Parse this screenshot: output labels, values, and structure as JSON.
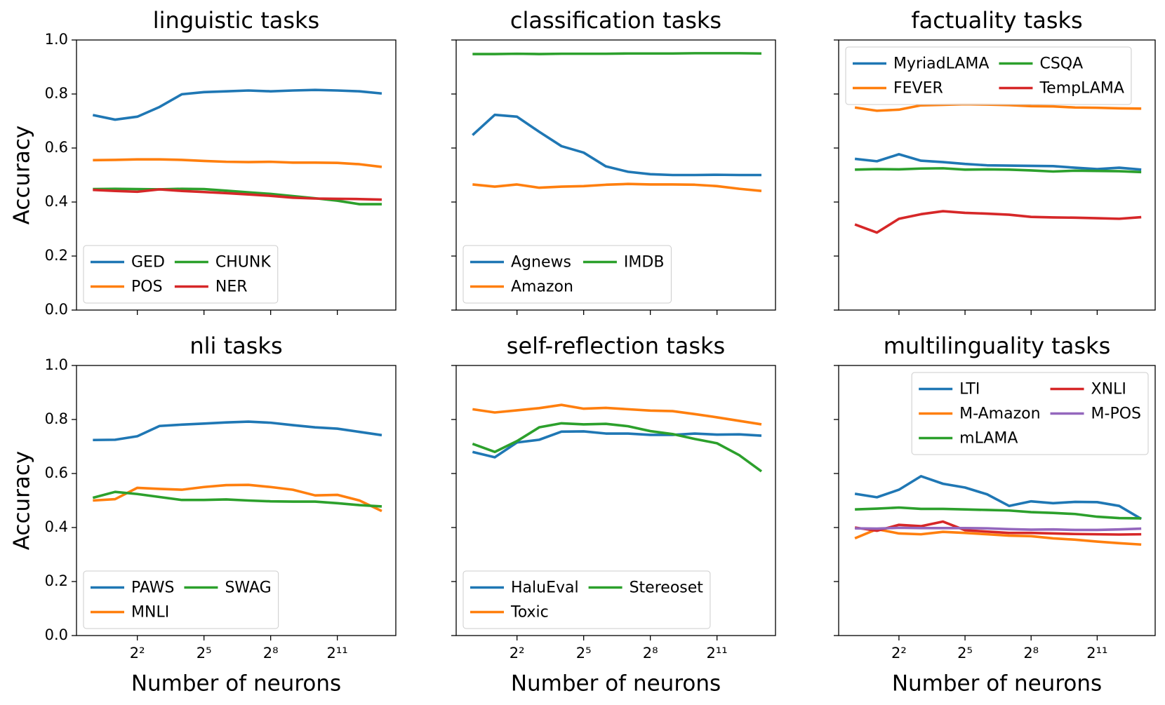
{
  "chart_data": [
    {
      "type": "line",
      "title": "linguistic tasks",
      "ylabel": "Accuracy",
      "x": [
        1,
        2,
        4,
        8,
        16,
        32,
        64,
        128,
        256,
        512,
        1024,
        2048,
        4096,
        8192
      ],
      "xscale": "log2",
      "xlim": [
        0.6,
        12700
      ],
      "ylim": [
        0,
        1
      ],
      "yticks": [
        {
          "value": 0,
          "label": "0.0"
        },
        0.2,
        0.4,
        0.6,
        0.8,
        {
          "value": 1,
          "label": "1.0"
        }
      ],
      "legend": "lower left",
      "legend_columns": 2,
      "series": [
        {
          "name": "GED",
          "color": "#1f77b4",
          "values": [
            0.722,
            0.705,
            0.716,
            0.752,
            0.799,
            0.807,
            0.81,
            0.813,
            0.81,
            0.813,
            0.815,
            0.813,
            0.81,
            0.802
          ]
        },
        {
          "name": "POS",
          "color": "#ff7f0e",
          "values": [
            0.555,
            0.556,
            0.558,
            0.558,
            0.556,
            0.552,
            0.549,
            0.548,
            0.549,
            0.546,
            0.546,
            0.545,
            0.54,
            0.53
          ]
        },
        {
          "name": "CHUNK",
          "color": "#2ca02c",
          "values": [
            0.448,
            0.449,
            0.448,
            0.447,
            0.449,
            0.448,
            0.442,
            0.436,
            0.43,
            0.422,
            0.414,
            0.405,
            0.392,
            0.392
          ]
        },
        {
          "name": "NER",
          "color": "#d62728",
          "values": [
            0.445,
            0.441,
            0.438,
            0.447,
            0.441,
            0.437,
            0.433,
            0.428,
            0.423,
            0.416,
            0.413,
            0.412,
            0.411,
            0.409
          ]
        }
      ]
    },
    {
      "type": "line",
      "title": "classification tasks",
      "x": [
        1,
        2,
        4,
        8,
        16,
        32,
        64,
        128,
        256,
        512,
        1024,
        2048,
        4096,
        8192
      ],
      "xscale": "log2",
      "xlim": [
        0.6,
        12700
      ],
      "ylim": [
        0,
        1
      ],
      "legend": "lower left",
      "legend_columns": 2,
      "series": [
        {
          "name": "Agnews",
          "color": "#1f77b4",
          "values": [
            0.648,
            0.723,
            0.716,
            0.66,
            0.607,
            0.583,
            0.532,
            0.512,
            0.503,
            0.5,
            0.5,
            0.501,
            0.5,
            0.5
          ]
        },
        {
          "name": "Amazon",
          "color": "#ff7f0e",
          "values": [
            0.465,
            0.457,
            0.465,
            0.453,
            0.457,
            0.459,
            0.464,
            0.467,
            0.465,
            0.465,
            0.464,
            0.459,
            0.449,
            0.441
          ]
        },
        {
          "name": "IMDB",
          "color": "#2ca02c",
          "values": [
            0.948,
            0.948,
            0.949,
            0.948,
            0.949,
            0.949,
            0.949,
            0.95,
            0.95,
            0.95,
            0.951,
            0.951,
            0.951,
            0.95
          ]
        }
      ]
    },
    {
      "type": "line",
      "title": "factuality tasks",
      "x": [
        1,
        2,
        4,
        8,
        16,
        32,
        64,
        128,
        256,
        512,
        1024,
        2048,
        4096,
        8192
      ],
      "xscale": "log2",
      "xlim": [
        0.6,
        12700
      ],
      "ylim": [
        0,
        1
      ],
      "legend": "upper left",
      "legend_columns": 2,
      "series": [
        {
          "name": "MyriadLAMA",
          "color": "#1f77b4",
          "values": [
            0.56,
            0.551,
            0.577,
            0.553,
            0.548,
            0.541,
            0.536,
            0.535,
            0.534,
            0.533,
            0.527,
            0.522,
            0.527,
            0.52
          ]
        },
        {
          "name": "FEVER",
          "color": "#ff7f0e",
          "values": [
            0.75,
            0.738,
            0.742,
            0.758,
            0.76,
            0.762,
            0.761,
            0.759,
            0.755,
            0.754,
            0.75,
            0.749,
            0.747,
            0.746
          ]
        },
        {
          "name": "CSQA",
          "color": "#2ca02c",
          "values": [
            0.52,
            0.522,
            0.521,
            0.524,
            0.525,
            0.52,
            0.521,
            0.52,
            0.517,
            0.513,
            0.516,
            0.515,
            0.514,
            0.511
          ]
        },
        {
          "name": "TempLAMA",
          "color": "#d62728",
          "values": [
            0.317,
            0.287,
            0.338,
            0.355,
            0.366,
            0.36,
            0.357,
            0.353,
            0.345,
            0.343,
            0.342,
            0.34,
            0.338,
            0.344
          ]
        }
      ]
    },
    {
      "type": "line",
      "title": "nli tasks",
      "ylabel": "Accuracy",
      "xlabel": "Number of neurons",
      "x": [
        1,
        2,
        4,
        8,
        16,
        32,
        64,
        128,
        256,
        512,
        1024,
        2048,
        4096,
        8192
      ],
      "xscale": "log2",
      "xlim": [
        0.6,
        12700
      ],
      "ylim": [
        0,
        1
      ],
      "xticks": [
        {
          "value": 4,
          "label": "2²"
        },
        {
          "value": 32,
          "label": "2⁵"
        },
        {
          "value": 256,
          "label": "2⁸"
        },
        {
          "value": 2048,
          "label": "2¹¹"
        }
      ],
      "yticks": [
        {
          "value": 0,
          "label": "0.0"
        },
        0.2,
        0.4,
        0.6,
        0.8,
        {
          "value": 1,
          "label": "1.0"
        }
      ],
      "legend": "lower left",
      "legend_columns": 2,
      "series": [
        {
          "name": "PAWS",
          "color": "#1f77b4",
          "values": [
            0.724,
            0.725,
            0.738,
            0.776,
            0.781,
            0.785,
            0.789,
            0.792,
            0.788,
            0.779,
            0.771,
            0.766,
            0.754,
            0.742
          ]
        },
        {
          "name": "MNLI",
          "color": "#ff7f0e",
          "values": [
            0.5,
            0.505,
            0.547,
            0.543,
            0.54,
            0.55,
            0.557,
            0.558,
            0.55,
            0.54,
            0.519,
            0.521,
            0.5,
            0.461
          ]
        },
        {
          "name": "SWAG",
          "color": "#2ca02c",
          "values": [
            0.51,
            0.532,
            0.524,
            0.513,
            0.502,
            0.502,
            0.504,
            0.5,
            0.497,
            0.496,
            0.496,
            0.49,
            0.483,
            0.478
          ]
        }
      ]
    },
    {
      "type": "line",
      "title": "self-reflection tasks",
      "xlabel": "Number of neurons",
      "x": [
        1,
        2,
        4,
        8,
        16,
        32,
        64,
        128,
        256,
        512,
        1024,
        2048,
        4096,
        8192
      ],
      "xscale": "log2",
      "xlim": [
        0.6,
        12700
      ],
      "ylim": [
        0,
        1
      ],
      "xticks": [
        {
          "value": 4,
          "label": "2²"
        },
        {
          "value": 32,
          "label": "2⁵"
        },
        {
          "value": 256,
          "label": "2⁸"
        },
        {
          "value": 2048,
          "label": "2¹¹"
        }
      ],
      "legend": "lower left",
      "legend_columns": 2,
      "series": [
        {
          "name": "HaluEval",
          "color": "#1f77b4",
          "values": [
            0.68,
            0.66,
            0.715,
            0.725,
            0.755,
            0.756,
            0.748,
            0.748,
            0.743,
            0.743,
            0.748,
            0.744,
            0.745,
            0.74
          ]
        },
        {
          "name": "Toxic",
          "color": "#ff7f0e",
          "values": [
            0.838,
            0.826,
            0.834,
            0.842,
            0.854,
            0.84,
            0.843,
            0.838,
            0.833,
            0.831,
            0.82,
            0.808,
            0.795,
            0.782
          ]
        },
        {
          "name": "Stereoset",
          "color": "#2ca02c",
          "values": [
            0.71,
            0.68,
            0.72,
            0.771,
            0.786,
            0.782,
            0.784,
            0.775,
            0.757,
            0.746,
            0.728,
            0.712,
            0.668,
            0.608
          ]
        }
      ]
    },
    {
      "type": "line",
      "title": "multilinguality tasks",
      "xlabel": "Number of neurons",
      "x": [
        1,
        2,
        4,
        8,
        16,
        32,
        64,
        128,
        256,
        512,
        1024,
        2048,
        4096,
        8192
      ],
      "xscale": "log2",
      "xlim": [
        0.6,
        12700
      ],
      "ylim": [
        0,
        1
      ],
      "xticks": [
        {
          "value": 4,
          "label": "2²"
        },
        {
          "value": 32,
          "label": "2⁵"
        },
        {
          "value": 256,
          "label": "2⁸"
        },
        {
          "value": 2048,
          "label": "2¹¹"
        }
      ],
      "legend": "upper right",
      "legend_columns": 2,
      "series": [
        {
          "name": "LTI",
          "color": "#1f77b4",
          "values": [
            0.525,
            0.512,
            0.54,
            0.59,
            0.562,
            0.548,
            0.523,
            0.48,
            0.497,
            0.49,
            0.495,
            0.494,
            0.48,
            0.432
          ]
        },
        {
          "name": "M-Amazon",
          "color": "#ff7f0e",
          "values": [
            0.36,
            0.394,
            0.378,
            0.375,
            0.384,
            0.38,
            0.375,
            0.37,
            0.368,
            0.36,
            0.355,
            0.348,
            0.342,
            0.337
          ]
        },
        {
          "name": "mLAMA",
          "color": "#2ca02c",
          "values": [
            0.467,
            0.47,
            0.474,
            0.469,
            0.469,
            0.467,
            0.465,
            0.463,
            0.457,
            0.454,
            0.45,
            0.44,
            0.435,
            0.434
          ]
        },
        {
          "name": "XNLI",
          "color": "#d62728",
          "values": [
            0.4,
            0.388,
            0.41,
            0.405,
            0.422,
            0.39,
            0.385,
            0.38,
            0.38,
            0.378,
            0.376,
            0.375,
            0.374,
            0.375
          ]
        },
        {
          "name": "M-POS",
          "color": "#9467bd",
          "values": [
            0.397,
            0.396,
            0.399,
            0.398,
            0.398,
            0.398,
            0.397,
            0.394,
            0.392,
            0.393,
            0.391,
            0.391,
            0.393,
            0.396
          ]
        }
      ]
    }
  ]
}
